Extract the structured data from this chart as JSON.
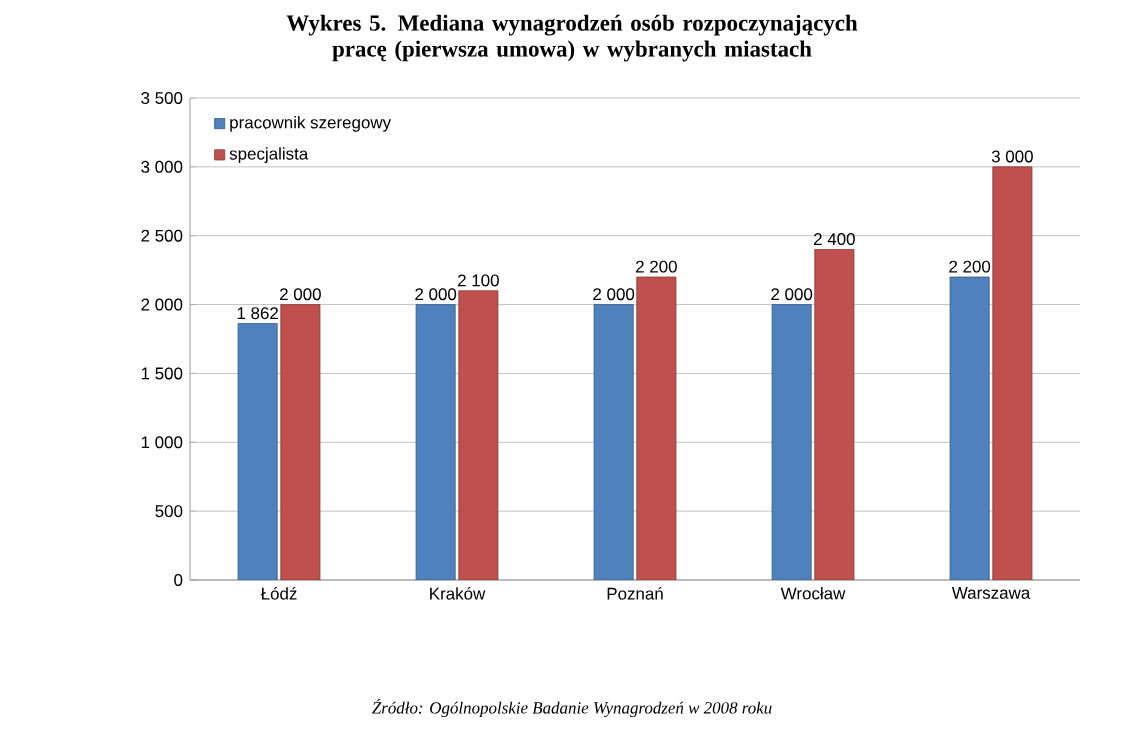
{
  "chart_data": {
    "type": "bar",
    "title": "Wykres 5. Mediana wynagrodzeń osób rozpoczynających pracę (pierwsza umowa) w wybranych miastach",
    "categories": [
      "Łódź",
      "Kraków",
      "Poznań",
      "Wrocław",
      "Warszawa"
    ],
    "series": [
      {
        "name": "pracownik szeregowy",
        "color": "#4f81bd",
        "values": [
          1862,
          2000,
          2000,
          2000,
          2200
        ],
        "value_labels": [
          "1 862",
          "2 000",
          "2 000",
          "2 000",
          "2 200"
        ]
      },
      {
        "name": "specjalista",
        "color": "#c0504d",
        "values": [
          2000,
          2100,
          2200,
          2400,
          3000
        ],
        "value_labels": [
          "2 000",
          "2 100",
          "2 200",
          "2 400",
          "3 000"
        ]
      }
    ],
    "ylim": [
      0,
      3500
    ],
    "yticks": [
      0,
      500,
      {
        "value": 1000,
        "label": "1 000"
      },
      {
        "value": 1500,
        "label": "1 500"
      },
      {
        "value": 2000,
        "label": "2 000"
      },
      {
        "value": 2500,
        "label": "2 500"
      },
      {
        "value": 3000,
        "label": "3 000"
      },
      {
        "value": 3500,
        "label": "3 500"
      }
    ],
    "grid": "y",
    "legend": "top left",
    "annotations": [
      "Źródło: Ogólnopolskie Badanie Wynagrodzeń w 2008 roku"
    ]
  }
}
